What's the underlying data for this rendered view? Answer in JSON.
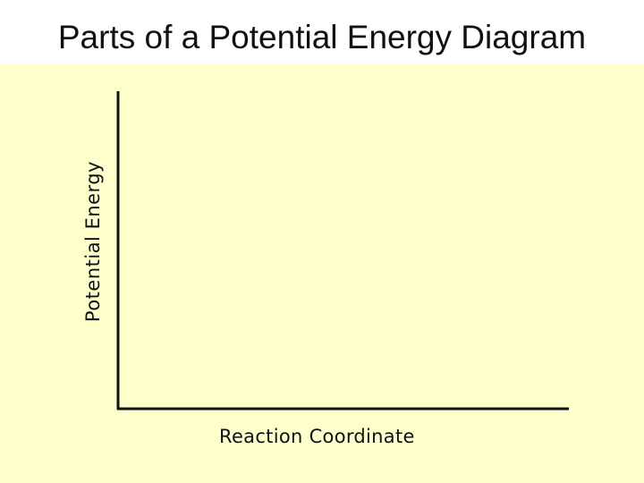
{
  "slide": {
    "title": "Parts of a Potential Energy Diagram",
    "background_color": "#ffffcc"
  },
  "diagram": {
    "y_axis_label": "Potential Energy",
    "x_axis_label": "Reaction Coordinate",
    "axis_color": "#111111"
  }
}
